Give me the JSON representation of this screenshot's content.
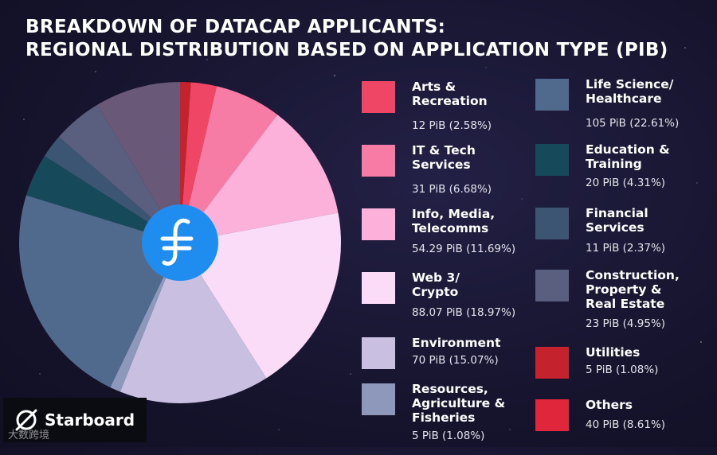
{
  "chart_data": {
    "type": "pie",
    "title": "BREAKDOWN OF DATACAP APPLICANTS:\nREGIONAL DISTRIBUTION BASED ON APPLICATION TYPE (PIB)",
    "legend_placement": "right",
    "slices": [
      {
        "label": "Arts &\nRecreation",
        "value_text": "12 PiB (2.58%)",
        "value": 12,
        "percent": 2.58,
        "color": "#ee4664"
      },
      {
        "label": "IT & Tech\nServices",
        "value_text": "31 PiB (6.68%)",
        "value": 31,
        "percent": 6.68,
        "color": "#f77ca5"
      },
      {
        "label": "Info, Media,\nTelecomms",
        "value_text": "54.29 PiB (11.69%)",
        "value": 54.29,
        "percent": 11.69,
        "color": "#fbb1da"
      },
      {
        "label": "Web 3/\nCrypto",
        "value_text": "88.07 PiB (18.97%)",
        "value": 88.07,
        "percent": 18.97,
        "color": "#fbdcf8"
      },
      {
        "label": "Environment",
        "value_text": "70 PiB (15.07%)",
        "value": 70,
        "percent": 15.07,
        "color": "#c9bfe1"
      },
      {
        "label": "Resources,\nAgriculture &\nFisheries",
        "value_text": "5 PiB (1.08%)",
        "value": 5,
        "percent": 1.08,
        "color": "#8e98bb"
      },
      {
        "label": "Life Science/\nHealthcare",
        "value_text": "105 PiB (22.61%)",
        "value": 105,
        "percent": 22.61,
        "color": "#506a8e"
      },
      {
        "label": "Education &\nTraining",
        "value_text": "20 PiB (4.31%)",
        "value": 20,
        "percent": 4.31,
        "color": "#164a5a"
      },
      {
        "label": "Financial\nServices",
        "value_text": "11 PiB (2.37%)",
        "value": 11,
        "percent": 2.37,
        "color": "#3b5573"
      },
      {
        "label": "Construction,\nProperty &\nReal Estate",
        "value_text": "23 PiB (4.95%)",
        "value": 23,
        "percent": 4.95,
        "color": "#5a5f80"
      },
      {
        "label": "Utilities",
        "value_text": "5 PiB (1.08%)",
        "value": 5,
        "percent": 1.08,
        "color": "#c4232e"
      },
      {
        "label": "Others",
        "value_text": "40 PiB (8.61%)",
        "value": 40,
        "percent": 8.61,
        "color": "#6a5878"
      }
    ],
    "draw_order": [
      10,
      0,
      1,
      2,
      3,
      4,
      5,
      6,
      7,
      8,
      9,
      11
    ],
    "center_icon": "filecoin-icon"
  },
  "legend_colors": {
    "Others": "#e0263a"
  },
  "logo": {
    "text": "Starboard",
    "icon": "starboard-logo-icon"
  },
  "watermark": {
    "text": "大数跨境"
  }
}
